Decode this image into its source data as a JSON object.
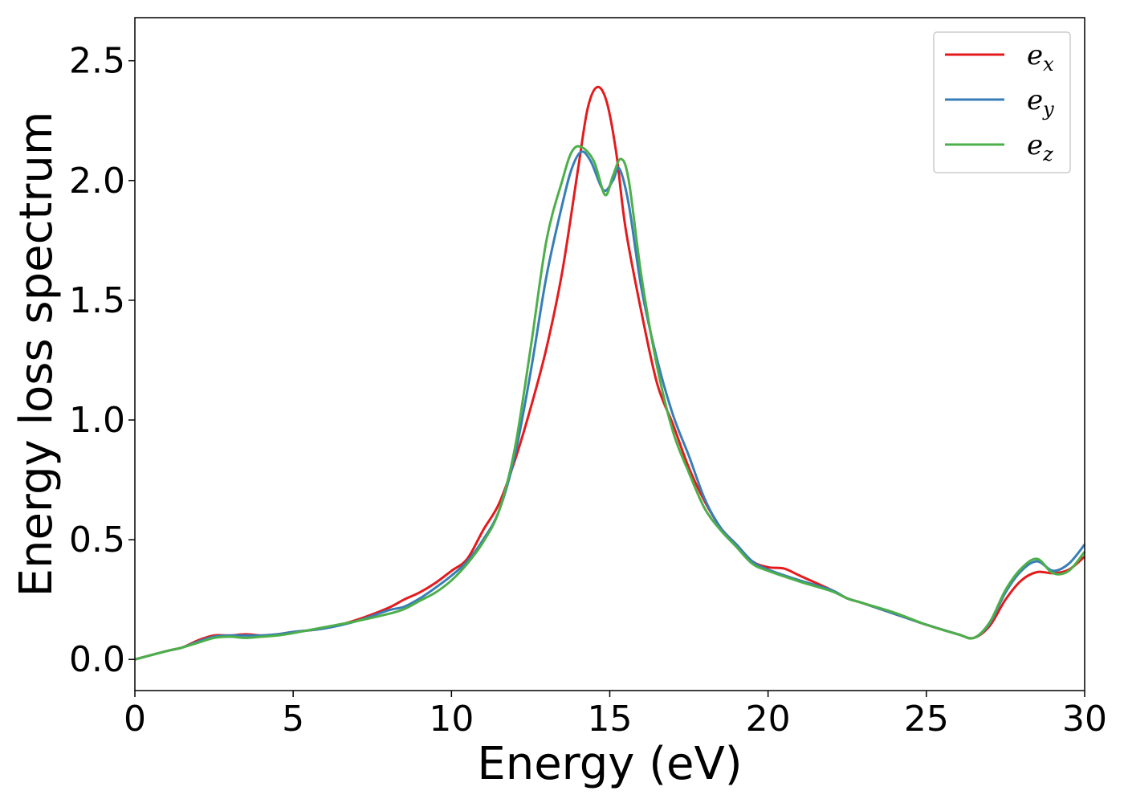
{
  "chart_data": {
    "type": "line",
    "xlabel": "Energy (eV)",
    "ylabel": "Energy loss spectrum",
    "xlim": [
      0,
      30
    ],
    "ylim": [
      -0.13,
      2.68
    ],
    "xticks": [
      0,
      5,
      10,
      15,
      20,
      25,
      30
    ],
    "xtick_labels": [
      "0",
      "5",
      "10",
      "15",
      "20",
      "25",
      "30"
    ],
    "yticks": [
      0.0,
      0.5,
      1.0,
      1.5,
      2.0,
      2.5
    ],
    "ytick_labels": [
      "0.0",
      "0.5",
      "1.0",
      "1.5",
      "2.0",
      "2.5"
    ],
    "grid": false,
    "legend_position": "top-right",
    "series": [
      {
        "name": "e",
        "subscript": "x",
        "color": "#e41a1c",
        "points": [
          [
            0,
            0
          ],
          [
            1,
            0.035
          ],
          [
            1.5,
            0.05
          ],
          [
            2,
            0.08
          ],
          [
            2.5,
            0.1
          ],
          [
            3,
            0.1
          ],
          [
            3.5,
            0.105
          ],
          [
            4,
            0.1
          ],
          [
            4.5,
            0.105
          ],
          [
            5,
            0.115
          ],
          [
            6,
            0.13
          ],
          [
            7,
            0.165
          ],
          [
            8,
            0.215
          ],
          [
            8.5,
            0.25
          ],
          [
            9,
            0.28
          ],
          [
            9.5,
            0.32
          ],
          [
            10,
            0.37
          ],
          [
            10.5,
            0.42
          ],
          [
            11,
            0.54
          ],
          [
            11.5,
            0.65
          ],
          [
            12,
            0.83
          ],
          [
            12.5,
            1.05
          ],
          [
            13,
            1.3
          ],
          [
            13.5,
            1.62
          ],
          [
            14,
            2.05
          ],
          [
            14.3,
            2.3
          ],
          [
            14.6,
            2.39
          ],
          [
            14.9,
            2.33
          ],
          [
            15.2,
            2.12
          ],
          [
            15.5,
            1.8
          ],
          [
            16,
            1.45
          ],
          [
            16.5,
            1.15
          ],
          [
            17,
            0.98
          ],
          [
            17.5,
            0.8
          ],
          [
            18,
            0.66
          ],
          [
            18.5,
            0.55
          ],
          [
            19,
            0.48
          ],
          [
            19.5,
            0.41
          ],
          [
            20,
            0.385
          ],
          [
            20.5,
            0.38
          ],
          [
            21,
            0.35
          ],
          [
            22,
            0.29
          ],
          [
            22.5,
            0.255
          ],
          [
            23,
            0.235
          ],
          [
            24,
            0.19
          ],
          [
            25,
            0.145
          ],
          [
            26,
            0.105
          ],
          [
            26.5,
            0.09
          ],
          [
            27,
            0.14
          ],
          [
            27.5,
            0.25
          ],
          [
            28,
            0.33
          ],
          [
            28.5,
            0.365
          ],
          [
            29,
            0.36
          ],
          [
            29.5,
            0.375
          ],
          [
            30,
            0.43
          ]
        ]
      },
      {
        "name": "e",
        "subscript": "y",
        "color": "#377eb8",
        "points": [
          [
            0,
            0
          ],
          [
            1,
            0.035
          ],
          [
            1.5,
            0.05
          ],
          [
            2,
            0.075
          ],
          [
            2.5,
            0.095
          ],
          [
            3,
            0.1
          ],
          [
            3.5,
            0.1
          ],
          [
            4,
            0.1
          ],
          [
            4.5,
            0.105
          ],
          [
            5,
            0.115
          ],
          [
            6,
            0.13
          ],
          [
            7,
            0.16
          ],
          [
            8,
            0.205
          ],
          [
            8.5,
            0.22
          ],
          [
            9,
            0.255
          ],
          [
            9.5,
            0.3
          ],
          [
            10,
            0.35
          ],
          [
            10.5,
            0.41
          ],
          [
            11,
            0.5
          ],
          [
            11.5,
            0.62
          ],
          [
            12,
            0.85
          ],
          [
            12.5,
            1.2
          ],
          [
            13,
            1.6
          ],
          [
            13.5,
            1.9
          ],
          [
            13.8,
            2.05
          ],
          [
            14.1,
            2.12
          ],
          [
            14.4,
            2.08
          ],
          [
            14.8,
            1.96
          ],
          [
            15.1,
            2.0
          ],
          [
            15.3,
            2.05
          ],
          [
            15.6,
            1.9
          ],
          [
            16,
            1.55
          ],
          [
            16.5,
            1.25
          ],
          [
            17,
            1.02
          ],
          [
            17.5,
            0.85
          ],
          [
            18,
            0.67
          ],
          [
            18.5,
            0.55
          ],
          [
            19,
            0.48
          ],
          [
            19.5,
            0.41
          ],
          [
            20,
            0.375
          ],
          [
            21,
            0.33
          ],
          [
            22,
            0.29
          ],
          [
            22.5,
            0.255
          ],
          [
            23,
            0.235
          ],
          [
            24,
            0.19
          ],
          [
            25,
            0.145
          ],
          [
            26,
            0.105
          ],
          [
            26.5,
            0.09
          ],
          [
            27,
            0.15
          ],
          [
            27.5,
            0.28
          ],
          [
            28,
            0.37
          ],
          [
            28.5,
            0.41
          ],
          [
            29,
            0.37
          ],
          [
            29.5,
            0.4
          ],
          [
            30,
            0.48
          ]
        ]
      },
      {
        "name": "e",
        "subscript": "z",
        "color": "#4daf4a",
        "points": [
          [
            0,
            0
          ],
          [
            1,
            0.035
          ],
          [
            1.5,
            0.05
          ],
          [
            2,
            0.07
          ],
          [
            2.5,
            0.09
          ],
          [
            3,
            0.095
          ],
          [
            3.5,
            0.09
          ],
          [
            4,
            0.095
          ],
          [
            4.5,
            0.1
          ],
          [
            5,
            0.11
          ],
          [
            6,
            0.135
          ],
          [
            7,
            0.16
          ],
          [
            8,
            0.19
          ],
          [
            8.5,
            0.21
          ],
          [
            9,
            0.245
          ],
          [
            9.5,
            0.28
          ],
          [
            10,
            0.33
          ],
          [
            10.5,
            0.4
          ],
          [
            11,
            0.49
          ],
          [
            11.5,
            0.62
          ],
          [
            12,
            0.88
          ],
          [
            12.5,
            1.3
          ],
          [
            13,
            1.75
          ],
          [
            13.5,
            2.0
          ],
          [
            13.8,
            2.12
          ],
          [
            14.1,
            2.14
          ],
          [
            14.5,
            2.08
          ],
          [
            14.85,
            1.94
          ],
          [
            15.1,
            2.02
          ],
          [
            15.35,
            2.09
          ],
          [
            15.6,
            2.0
          ],
          [
            16,
            1.6
          ],
          [
            16.5,
            1.22
          ],
          [
            17,
            0.95
          ],
          [
            17.5,
            0.78
          ],
          [
            18,
            0.63
          ],
          [
            18.5,
            0.54
          ],
          [
            19,
            0.47
          ],
          [
            19.5,
            0.4
          ],
          [
            20,
            0.37
          ],
          [
            21,
            0.325
          ],
          [
            22,
            0.285
          ],
          [
            22.5,
            0.255
          ],
          [
            23,
            0.235
          ],
          [
            24,
            0.195
          ],
          [
            25,
            0.145
          ],
          [
            26,
            0.105
          ],
          [
            26.5,
            0.09
          ],
          [
            27,
            0.155
          ],
          [
            27.5,
            0.29
          ],
          [
            28,
            0.38
          ],
          [
            28.5,
            0.42
          ],
          [
            29,
            0.36
          ],
          [
            29.5,
            0.37
          ],
          [
            30,
            0.45
          ]
        ]
      }
    ]
  }
}
